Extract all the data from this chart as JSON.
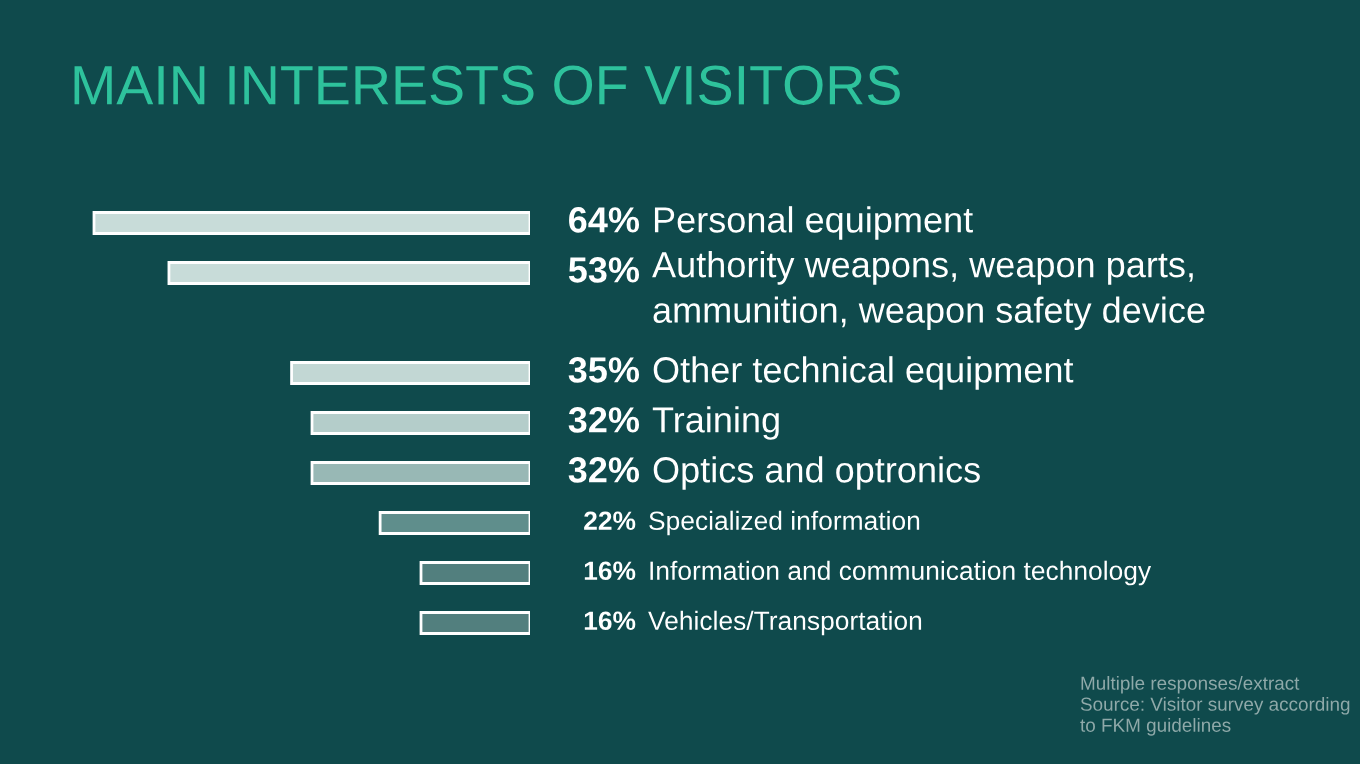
{
  "chart_data": {
    "type": "bar",
    "orientation": "horizontal",
    "title": "MAIN INTERESTS OF VISITORS",
    "categories": [
      "Personal equipment",
      "Authority weapons, weapon parts,\nammunition, weapon safety device",
      "Other technical equipment",
      "Training",
      "Optics and optronics",
      "Specialized information",
      "Information and communication technology",
      "Vehicles/Transportation"
    ],
    "values": [
      64,
      53,
      35,
      32,
      32,
      22,
      16,
      16
    ],
    "value_labels": [
      "64%",
      "53%",
      "35%",
      "32%",
      "32%",
      "22%",
      "16%",
      "16%"
    ],
    "colors": [
      "#c8dcd9",
      "#c8dcd9",
      "#c2d7d4",
      "#b4cdca",
      "#98b8b5",
      "#5f8e8c",
      "#527f7e",
      "#527f7e"
    ],
    "annotations": [
      "Multiple responses/extract",
      "Source: Visitor survey according\nto FKM guidelines"
    ]
  }
}
